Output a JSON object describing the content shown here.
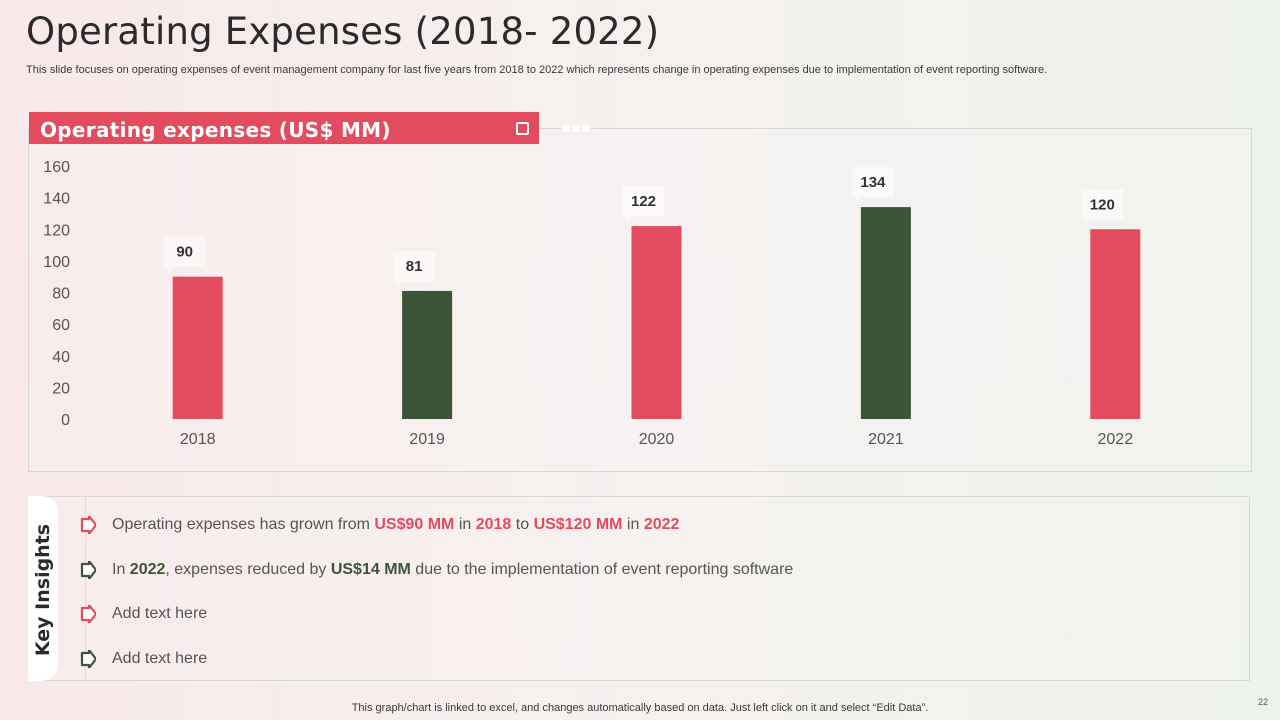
{
  "slide": {
    "title": "Operating Expenses (2018- 2022)",
    "subtitle": "This slide focuses on operating expenses of event management company for last five years from 2018 to 2022 which represents change in operating expenses due to implementation of event reporting software.",
    "footer": "This graph/chart is linked to excel,  and changes automatically based on data. Just left click on it and select “Edit Data”.",
    "page_number": "22"
  },
  "colors": {
    "red": "#e34c5e",
    "green": "#3c5438"
  },
  "chart_data": {
    "type": "bar",
    "title": "Operating expenses (US$ MM)",
    "categories": [
      "2018",
      "2019",
      "2020",
      "2021",
      "2022"
    ],
    "values": [
      90,
      81,
      122,
      134,
      120
    ],
    "data_labels": [
      "90",
      "81",
      "122",
      "134",
      "120"
    ],
    "bar_colors": [
      "#e34c5e",
      "#3c5438",
      "#e34c5e",
      "#3c5438",
      "#e34c5e"
    ],
    "ylim": [
      0,
      160
    ],
    "yticks": [
      0,
      20,
      40,
      60,
      80,
      100,
      120,
      140,
      160
    ],
    "xlabel": "",
    "ylabel": "",
    "grid": false,
    "legend": "none"
  },
  "insights": {
    "label": "Key Insights",
    "row1": {
      "t1": "Operating expenses has grown from ",
      "t2": "US$90 MM",
      "t3": " in ",
      "t4": "2018",
      "t5": " to ",
      "t6": "US$120 MM",
      "t7": " in ",
      "t8": "2022"
    },
    "row2": {
      "t1": "In ",
      "t2": "2022",
      "t3": ", expenses reduced by ",
      "t4": "US$14 MM",
      "t5": " due to the implementation of event reporting software"
    },
    "row3": {
      "t1": "Add text here"
    },
    "row4": {
      "t1": "Add text here"
    },
    "arrow_colors": [
      "#e34c5e",
      "#3c5438",
      "#e34c5e",
      "#3c5438"
    ]
  }
}
